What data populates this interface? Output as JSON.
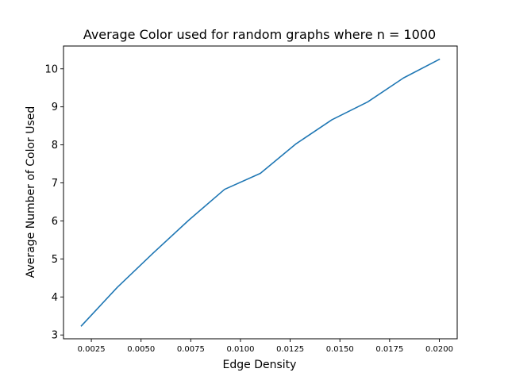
{
  "chart_data": {
    "type": "line",
    "title": "Average Color used for random graphs where n = 1000",
    "xlabel": "Edge Density",
    "ylabel": "Average Number of Color Used",
    "xlim": [
      0.0011,
      0.0209
    ],
    "ylim": [
      2.9,
      10.6
    ],
    "xticks": [
      0.0025,
      0.005,
      0.0075,
      0.01,
      0.0125,
      0.015,
      0.0175,
      0.02
    ],
    "xtick_labels": [
      "0.0025",
      "0.0050",
      "0.0075",
      "0.0100",
      "0.0125",
      "0.0150",
      "0.0175",
      "0.0200"
    ],
    "yticks": [
      3,
      4,
      5,
      6,
      7,
      8,
      9,
      10
    ],
    "ytick_labels": [
      "3",
      "4",
      "5",
      "6",
      "7",
      "8",
      "9",
      "10"
    ],
    "grid": false,
    "legend": false,
    "series": [
      {
        "color": "#1f77b4",
        "x": [
          0.002,
          0.0038,
          0.0056,
          0.0074,
          0.0092,
          0.011,
          0.0128,
          0.0146,
          0.0164,
          0.0182,
          0.02
        ],
        "y": [
          3.24,
          4.25,
          5.15,
          6.02,
          6.83,
          7.25,
          8.03,
          8.66,
          9.13,
          9.76,
          10.25
        ]
      }
    ]
  }
}
